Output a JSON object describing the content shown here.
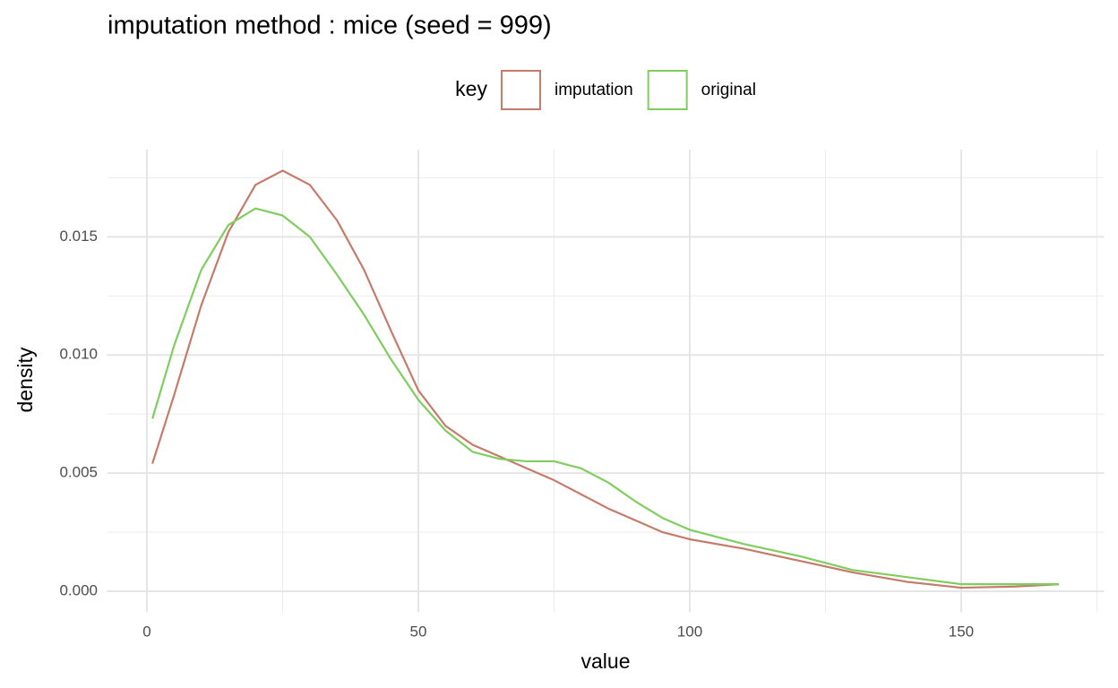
{
  "chart_data": {
    "type": "line",
    "title": "imputation method : mice (seed = 999)",
    "x_label": "value",
    "y_label": "density",
    "legend_title": "key",
    "x": [
      1,
      5,
      10,
      15,
      20,
      25,
      30,
      35,
      40,
      45,
      50,
      55,
      60,
      65,
      70,
      75,
      80,
      85,
      90,
      95,
      100,
      110,
      120,
      130,
      140,
      150,
      160,
      168
    ],
    "series": [
      {
        "name": "imputation",
        "color": "#c57b6a",
        "values": [
          0.0054,
          0.0083,
          0.0121,
          0.0152,
          0.0172,
          0.0178,
          0.0172,
          0.0157,
          0.0136,
          0.011,
          0.0085,
          0.007,
          0.0062,
          0.0057,
          0.0052,
          0.0047,
          0.0041,
          0.0035,
          0.003,
          0.0025,
          0.0022,
          0.0018,
          0.0013,
          0.0008,
          0.0004,
          0.00015,
          0.0002,
          0.0003
        ]
      },
      {
        "name": "original",
        "color": "#7fcd5f",
        "values": [
          0.0073,
          0.0104,
          0.0136,
          0.0155,
          0.0162,
          0.0159,
          0.015,
          0.0134,
          0.0117,
          0.0098,
          0.0081,
          0.0068,
          0.0059,
          0.0056,
          0.0055,
          0.0055,
          0.0052,
          0.0046,
          0.0038,
          0.0031,
          0.0026,
          0.002,
          0.0015,
          0.0009,
          0.0006,
          0.0003,
          0.0003,
          0.0003
        ]
      }
    ],
    "xlim": [
      -7.35,
      176.35
    ],
    "ylim": [
      -0.00089,
      0.01869
    ],
    "xticks": [
      0,
      50,
      100,
      150
    ],
    "yticks": [
      {
        "value": 0,
        "label": "0.000"
      },
      {
        "value": 0.005,
        "label": "0.005"
      },
      {
        "value": 0.01,
        "label": "0.010"
      },
      {
        "value": 0.015,
        "label": "0.015"
      }
    ],
    "x_minor_ticks": [
      25,
      75,
      125,
      175
    ],
    "y_minor_ticks": [
      0.0025,
      0.0075,
      0.0125,
      0.0175
    ],
    "grid": true,
    "legend_position": "top"
  }
}
